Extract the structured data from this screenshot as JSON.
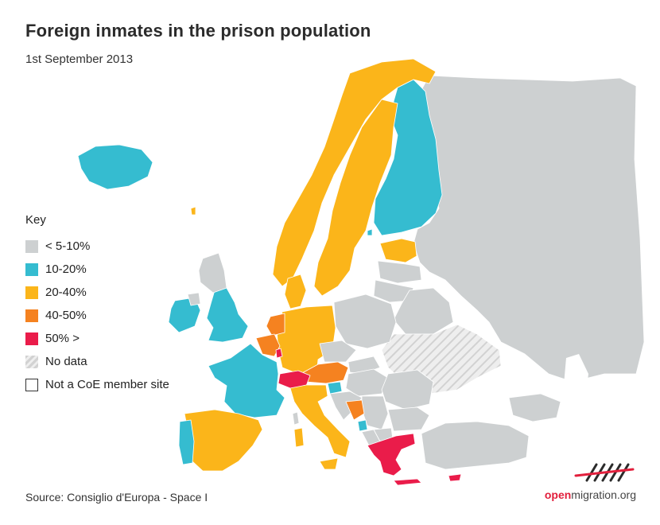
{
  "header": {
    "title": "Foreign inmates in the prison population",
    "subtitle": "1st September 2013"
  },
  "legend": {
    "title": "Key",
    "items": [
      {
        "label": "< 5-10%",
        "color": "#cdd0d1"
      },
      {
        "label": "10-20%",
        "color": "#35bcd0"
      },
      {
        "label": "20-40%",
        "color": "#fbb51a"
      },
      {
        "label": "40-50%",
        "color": "#f58220"
      },
      {
        "label": "50% >",
        "color": "#ea1c4a"
      },
      {
        "label": "No data",
        "color": "hatched"
      },
      {
        "label": "Not a CoE member site",
        "color": "#ffffff"
      }
    ]
  },
  "footer": {
    "source": "Source: Consiglio d'Europa - Space I",
    "brand_open": "open",
    "brand_rest": "migration.org"
  },
  "colors": {
    "grey": "#cdd0d1",
    "cyan": "#35bcd0",
    "yellow": "#fbb51a",
    "orange": "#f58220",
    "red": "#ea1c4a"
  }
}
